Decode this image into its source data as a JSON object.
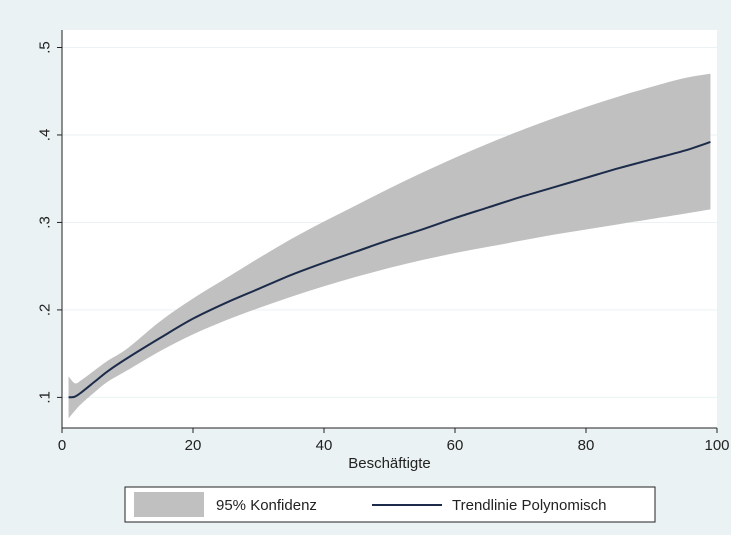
{
  "chart_data": {
    "type": "area",
    "title": "",
    "xlabel": "Beschäftigte",
    "ylabel": "",
    "xlim": [
      0,
      100
    ],
    "ylim": [
      0.065,
      0.52
    ],
    "x_ticks": [
      0,
      20,
      40,
      60,
      80,
      100
    ],
    "x_tick_labels": [
      "0",
      "20",
      "40",
      "60",
      "80",
      "100"
    ],
    "y_ticks": [
      0.1,
      0.2,
      0.3,
      0.4,
      0.5
    ],
    "y_tick_labels": [
      ".1",
      ".2",
      ".3",
      ".4",
      ".5"
    ],
    "grid": true,
    "legend_position": "bottom",
    "x": [
      1,
      2,
      3,
      5,
      7,
      10,
      15,
      20,
      25,
      30,
      35,
      40,
      45,
      50,
      55,
      60,
      65,
      70,
      75,
      80,
      85,
      90,
      95,
      99
    ],
    "series": [
      {
        "name": "95% Konfidenz",
        "kind": "band",
        "color": "#c0c0c0",
        "lower": [
          0.076,
          0.085,
          0.093,
          0.106,
          0.118,
          0.131,
          0.153,
          0.172,
          0.188,
          0.202,
          0.215,
          0.227,
          0.238,
          0.248,
          0.257,
          0.265,
          0.272,
          0.279,
          0.286,
          0.292,
          0.298,
          0.304,
          0.31,
          0.315
        ],
        "upper": [
          0.124,
          0.116,
          0.12,
          0.131,
          0.142,
          0.156,
          0.187,
          0.213,
          0.236,
          0.259,
          0.281,
          0.301,
          0.32,
          0.339,
          0.357,
          0.374,
          0.39,
          0.405,
          0.419,
          0.432,
          0.444,
          0.455,
          0.465,
          0.47
        ]
      },
      {
        "name": "Trendlinie Polynomisch",
        "kind": "line",
        "color": "#1c2b4a",
        "values": [
          0.1,
          0.101,
          0.106,
          0.118,
          0.13,
          0.145,
          0.168,
          0.19,
          0.208,
          0.224,
          0.24,
          0.254,
          0.267,
          0.28,
          0.292,
          0.305,
          0.317,
          0.329,
          0.34,
          0.351,
          0.362,
          0.372,
          0.382,
          0.392
        ]
      }
    ]
  }
}
